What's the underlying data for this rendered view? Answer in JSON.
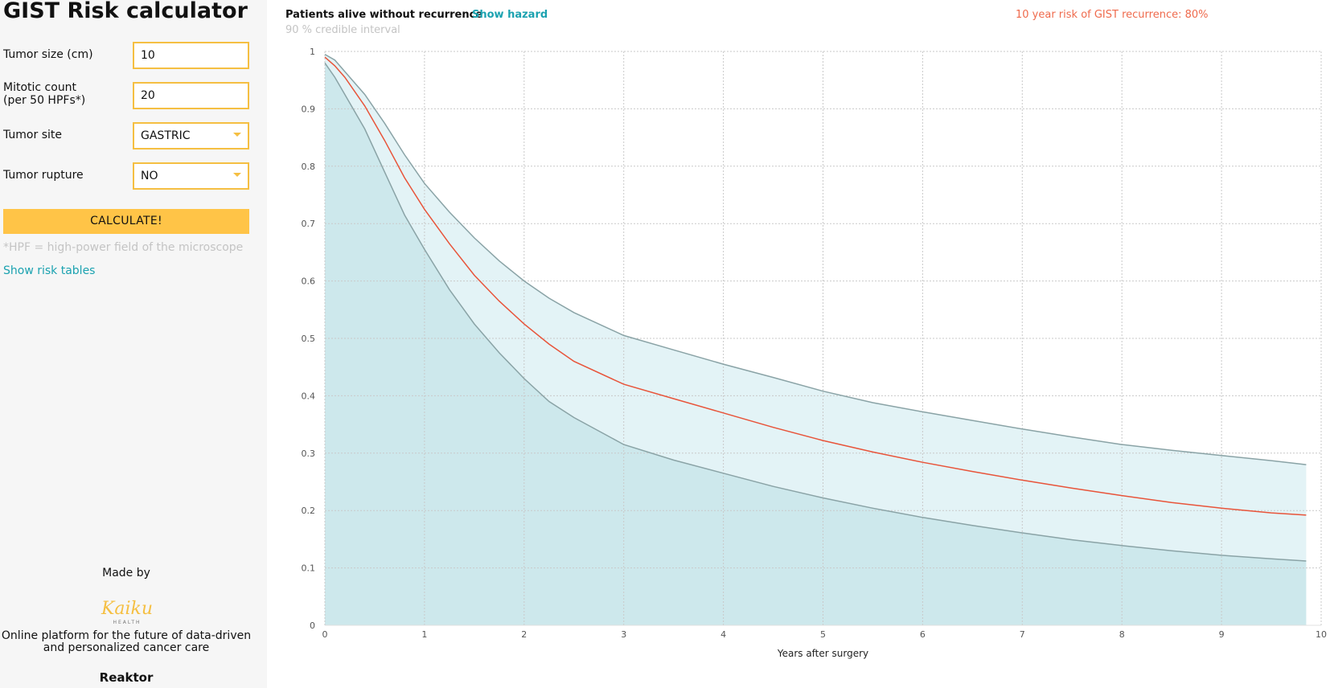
{
  "sidebar": {
    "title": "GIST Risk calculator",
    "fields": {
      "tumor_size": {
        "label": "Tumor size (cm)",
        "value": "10"
      },
      "mitotic_count": {
        "label_line1": "Mitotic count",
        "label_line2": "(per 50 HPFs*)",
        "value": "20"
      },
      "tumor_site": {
        "label": "Tumor site",
        "value": "GASTRIC"
      },
      "tumor_rupture": {
        "label": "Tumor rupture",
        "value": "NO"
      }
    },
    "calculate_label": "CALCULATE!",
    "footnote": "*HPF = high-power field of the microscope",
    "risk_tables_link": "Show risk tables",
    "made_by": "Made by",
    "logo": {
      "text": "Kaiku",
      "subtext": "HEALTH"
    },
    "tagline_line1": "Online platform for the future of data-driven",
    "tagline_line2": "and personalized cancer care",
    "partner": "Reaktor"
  },
  "chart_header": {
    "title": "Patients alive without recurrence",
    "hazard_link": "Show hazard",
    "ci_label": "90 % credible interval",
    "risk_text": "10 year risk of GIST recurrence: 80%"
  },
  "colors": {
    "accent": "#ffc447",
    "input_border": "#f5bf42",
    "link": "#1ba2b0",
    "median_line": "#e8543a",
    "ci_band": "#e3f3f6",
    "lower_fill": "#cde8ec",
    "ci_line": "#8aa3a6"
  },
  "chart_data": {
    "type": "area",
    "xlabel": "Years after surgery",
    "ylabel": "",
    "xlim": [
      0,
      10
    ],
    "ylim": [
      0,
      1
    ],
    "xticks": [
      "0",
      "1",
      "2",
      "3",
      "4",
      "5",
      "6",
      "7",
      "8",
      "9",
      "10"
    ],
    "yticks": [
      "0",
      "0.1",
      "0.2",
      "0.3",
      "0.4",
      "0.5",
      "0.6",
      "0.7",
      "0.8",
      "0.9",
      "1"
    ],
    "grid": true,
    "x": [
      0,
      0.1,
      0.2,
      0.4,
      0.6,
      0.8,
      1,
      1.25,
      1.5,
      1.75,
      2,
      2.25,
      2.5,
      3,
      3.5,
      4,
      4.5,
      5,
      5.5,
      6,
      6.5,
      7,
      7.5,
      8,
      8.5,
      9,
      9.5,
      9.85
    ],
    "series": [
      {
        "values": [
          0.99,
          0.975,
          0.955,
          0.905,
          0.845,
          0.78,
          0.725,
          0.665,
          0.61,
          0.565,
          0.525,
          0.49,
          0.46,
          0.42,
          0.395,
          0.37,
          0.345,
          0.322,
          0.302,
          0.284,
          0.268,
          0.253,
          0.239,
          0.226,
          0.214,
          0.204,
          0.196,
          0.192
        ]
      },
      {
        "values": [
          0.995,
          0.985,
          0.965,
          0.925,
          0.875,
          0.82,
          0.77,
          0.72,
          0.675,
          0.635,
          0.6,
          0.57,
          0.545,
          0.505,
          0.48,
          0.455,
          0.432,
          0.408,
          0.388,
          0.372,
          0.357,
          0.342,
          0.328,
          0.315,
          0.305,
          0.296,
          0.287,
          0.28
        ]
      },
      {
        "values": [
          0.98,
          0.955,
          0.925,
          0.865,
          0.79,
          0.715,
          0.655,
          0.585,
          0.525,
          0.475,
          0.43,
          0.39,
          0.362,
          0.315,
          0.288,
          0.265,
          0.242,
          0.222,
          0.204,
          0.188,
          0.174,
          0.161,
          0.149,
          0.139,
          0.13,
          0.122,
          0.116,
          0.112
        ]
      }
    ]
  }
}
